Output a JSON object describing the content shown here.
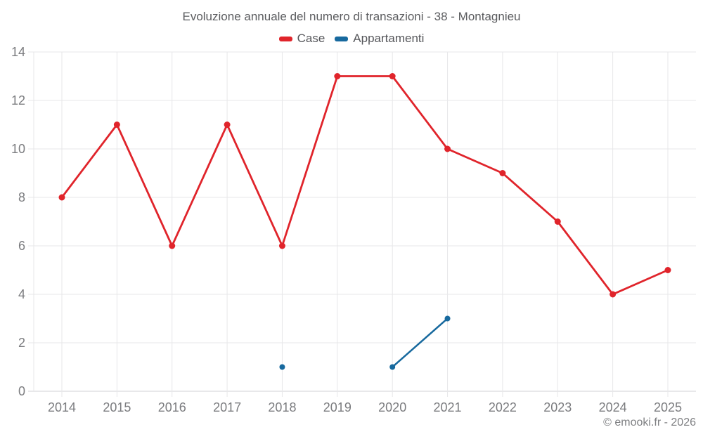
{
  "chart_data": {
    "type": "line",
    "title": "Evoluzione annuale del numero di transazioni - 38 - Montagnieu",
    "categories": [
      "2014",
      "2015",
      "2016",
      "2017",
      "2018",
      "2019",
      "2020",
      "2021",
      "2022",
      "2023",
      "2024",
      "2025"
    ],
    "series": [
      {
        "name": "Case",
        "color": "#e0242b",
        "values": [
          8,
          11,
          6,
          11,
          6,
          13,
          13,
          10,
          9,
          7,
          4,
          5
        ]
      },
      {
        "name": "Appartamenti",
        "color": "#17699e",
        "values": [
          null,
          null,
          null,
          null,
          1,
          null,
          1,
          3,
          null,
          null,
          null,
          null
        ]
      }
    ],
    "ylim": [
      0,
      14
    ],
    "ytick_step": 2,
    "yticks": [
      0,
      2,
      4,
      6,
      8,
      10,
      12,
      14
    ],
    "grid": true,
    "legend_position": "top"
  },
  "footer": {
    "copyright": "© emooki.fr - 2026"
  },
  "colors": {
    "grid": "#e7e7e9",
    "axis_line": "#d2d2d5",
    "tick_label": "#7b7c7f",
    "title_text": "#5b5c5f"
  }
}
